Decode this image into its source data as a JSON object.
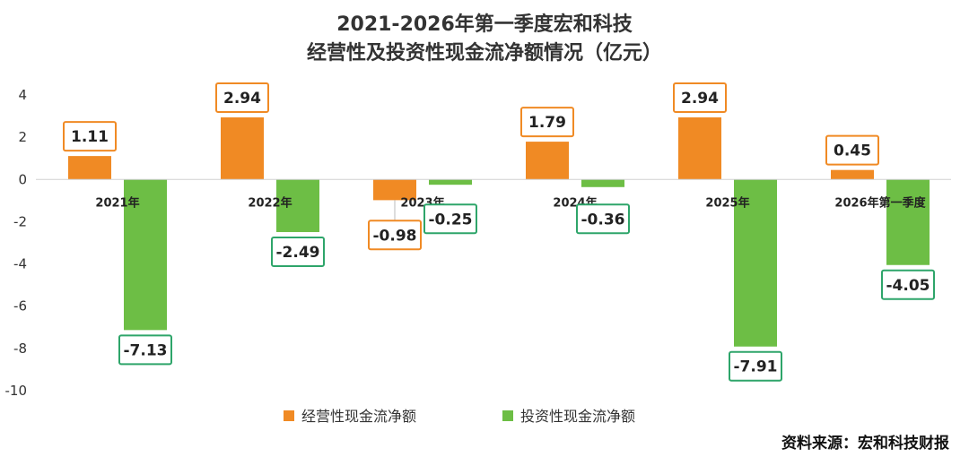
{
  "chart_data": {
    "type": "bar",
    "title": "2021-2026年第一季度宏和科技",
    "subtitle": "经营性及投资性现金流净额情况（亿元）",
    "categories": [
      "2021年",
      "2022年",
      "2023年",
      "2024年",
      "2025年",
      "2026年第一季度"
    ],
    "series": [
      {
        "name": "经营性现金流净额",
        "color": "#F08A24",
        "values": [
          1.11,
          2.94,
          -0.98,
          1.79,
          2.94,
          0.45
        ],
        "labels": [
          "1.11",
          "2.94",
          "-0.98",
          "1.79",
          "2.94",
          "0.45"
        ]
      },
      {
        "name": "投资性现金流净额",
        "color": "#6DBE45",
        "values": [
          -7.13,
          -2.49,
          -0.25,
          -0.36,
          -7.91,
          -4.05
        ],
        "labels": [
          "-7.13",
          "-2.49",
          "-0.25",
          "-0.36",
          "-7.91",
          "-4.05"
        ]
      }
    ],
    "ylim": [
      -10,
      4
    ],
    "yticks": [
      4,
      2,
      0,
      -2,
      -4,
      -6,
      -8,
      -10
    ],
    "ytick_labels": [
      "4",
      "2",
      "0",
      "-2",
      "-4",
      "-6",
      "-8",
      "-10"
    ],
    "grid": false,
    "legend_position": "bottom",
    "label_border_colors": {
      "operating": "#F08A24",
      "investing": "#2EA56A"
    },
    "highlight_label_color": "#E02020",
    "highlight_label_index": {
      "series": 1,
      "category": 4
    }
  },
  "source": "资料来源：宏和科技财报"
}
